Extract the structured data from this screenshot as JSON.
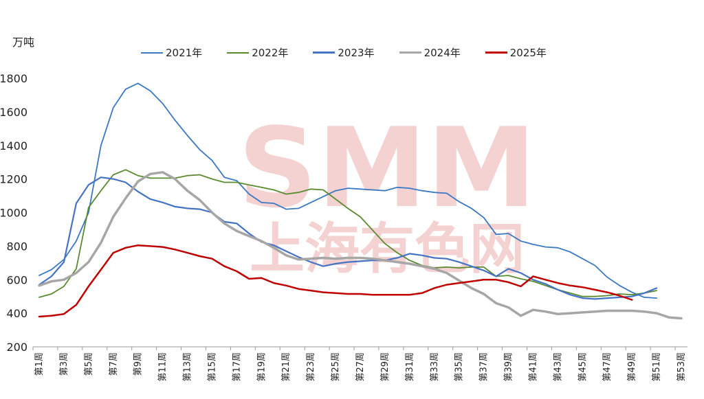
{
  "chart_data": {
    "type": "line",
    "unit_label": "万吨",
    "watermark": {
      "brand": "SMM",
      "text": "上海有色网"
    },
    "ylim": [
      200,
      1800
    ],
    "yticks": [
      200,
      400,
      600,
      800,
      1000,
      1200,
      1400,
      1600,
      1800
    ],
    "xticks": [
      "第1周",
      "第3周",
      "第5周",
      "第7周",
      "第9周",
      "第11周",
      "第13周",
      "第15周",
      "第17周",
      "第19周",
      "第21周",
      "第23周",
      "第25周",
      "第27周",
      "第29周",
      "第31周",
      "第33周",
      "第35周",
      "第37周",
      "第39周",
      "第41周",
      "第43周",
      "第45周",
      "第47周",
      "第49周",
      "第51周",
      "第53周"
    ],
    "weeks": 53,
    "legend_position": "top",
    "series": [
      {
        "name": "2021年",
        "color": "#3b78c2",
        "width": 1.8,
        "values": [
          625,
          660,
          720,
          830,
          1000,
          1400,
          1625,
          1735,
          1770,
          1725,
          1650,
          1550,
          1460,
          1375,
          1310,
          1210,
          1190,
          1110,
          1060,
          1055,
          1020,
          1025,
          1060,
          1095,
          1130,
          1145,
          1140,
          1135,
          1130,
          1150,
          1145,
          1130,
          1120,
          1115,
          1065,
          1025,
          970,
          870,
          875,
          830,
          810,
          795,
          790,
          765,
          725,
          685,
          615,
          565,
          525,
          495,
          490
        ]
      },
      {
        "name": "2022年",
        "color": "#5a8a2e",
        "width": 1.8,
        "values": [
          495,
          515,
          560,
          665,
          1030,
          1130,
          1225,
          1255,
          1220,
          1205,
          1205,
          1205,
          1220,
          1225,
          1200,
          1180,
          1180,
          1165,
          1150,
          1135,
          1110,
          1120,
          1140,
          1135,
          1080,
          1025,
          975,
          895,
          815,
          760,
          715,
          685,
          670,
          675,
          670,
          675,
          675,
          620,
          625,
          605,
          590,
          565,
          540,
          520,
          500,
          500,
          505,
          515,
          510,
          520,
          535
        ]
      },
      {
        "name": "2023年",
        "color": "#4472c4",
        "width": 2.2,
        "values": [
          570,
          620,
          705,
          1055,
          1165,
          1210,
          1200,
          1180,
          1125,
          1080,
          1060,
          1035,
          1025,
          1020,
          1000,
          945,
          935,
          875,
          825,
          805,
          770,
          735,
          705,
          680,
          695,
          705,
          710,
          715,
          715,
          730,
          755,
          745,
          730,
          725,
          705,
          680,
          655,
          620,
          665,
          640,
          600,
          575,
          540,
          510,
          490,
          485,
          490,
          495,
          500,
          520,
          550
        ]
      },
      {
        "name": "2024年",
        "color": "#a6a6a6",
        "width": 3.5,
        "values": [
          565,
          590,
          600,
          640,
          705,
          820,
          975,
          1085,
          1185,
          1230,
          1240,
          1200,
          1130,
          1075,
          1000,
          935,
          890,
          860,
          830,
          790,
          745,
          720,
          725,
          730,
          725,
          730,
          730,
          725,
          715,
          705,
          695,
          680,
          665,
          640,
          595,
          550,
          515,
          460,
          435,
          385,
          420,
          410,
          395,
          400,
          405,
          410,
          415,
          415,
          415,
          410,
          400,
          375,
          370
        ]
      },
      {
        "name": "2025年",
        "color": "#c00000",
        "width": 2.5,
        "values": [
          380,
          385,
          395,
          450,
          560,
          660,
          760,
          790,
          805,
          800,
          795,
          780,
          760,
          740,
          725,
          680,
          650,
          605,
          610,
          580,
          565,
          545,
          535,
          525,
          520,
          515,
          515,
          510,
          510,
          510,
          510,
          520,
          550,
          570,
          580,
          590,
          600,
          600,
          585,
          560,
          620,
          600,
          580,
          565,
          555,
          540,
          525,
          505,
          480
        ]
      }
    ]
  }
}
